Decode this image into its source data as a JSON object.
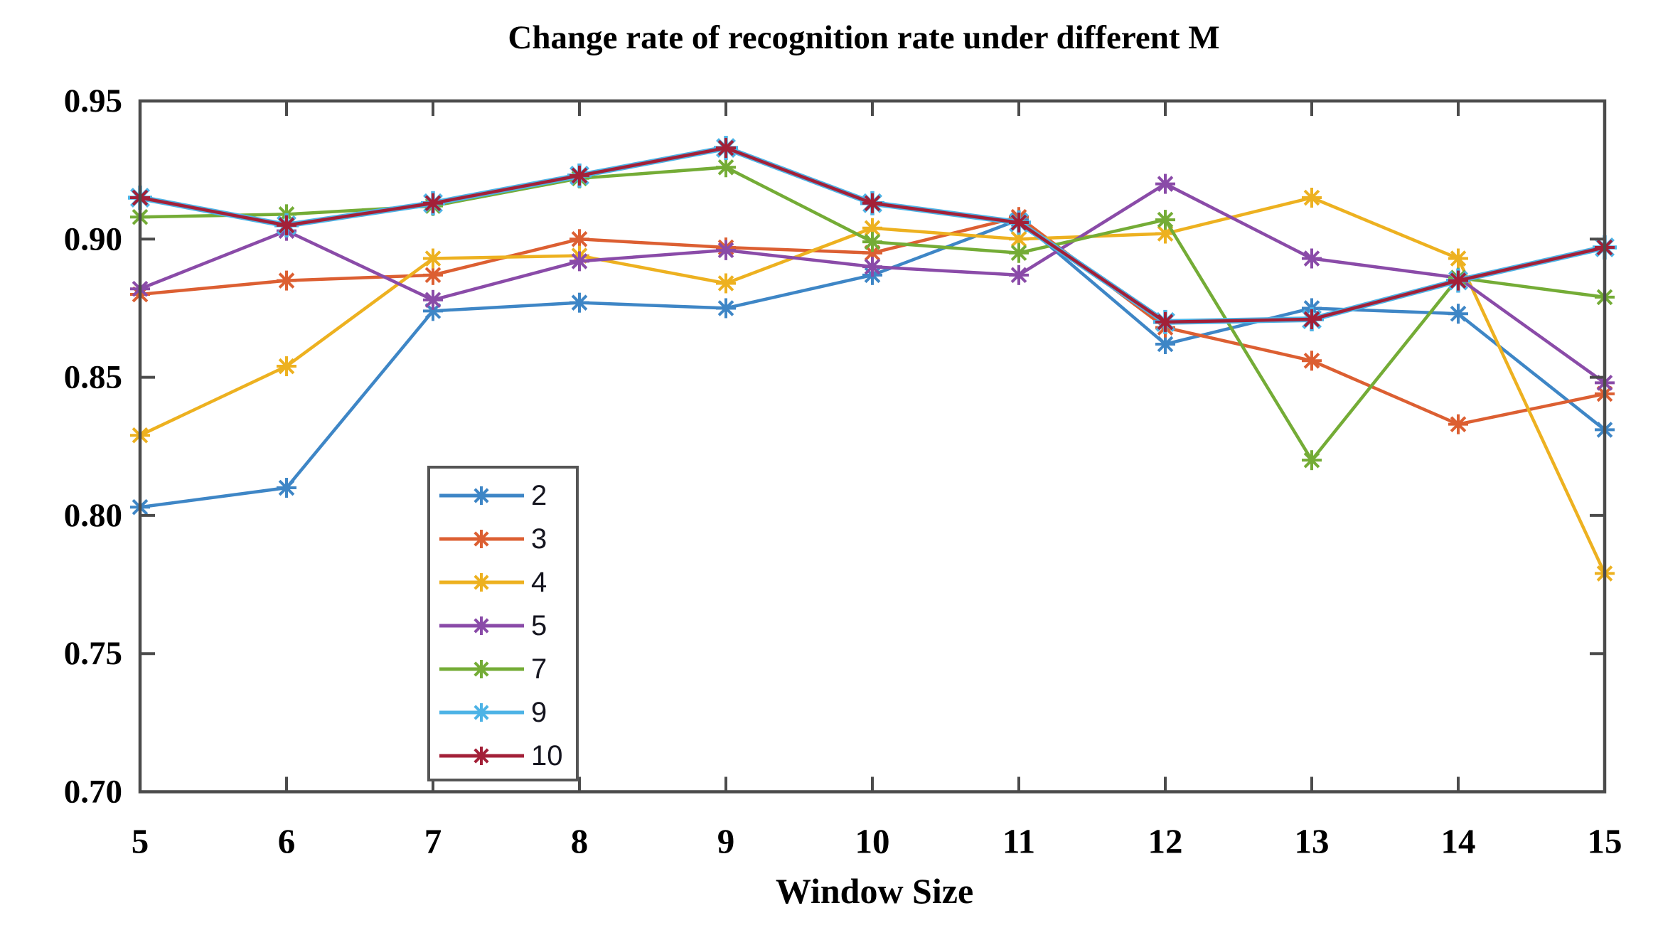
{
  "chart_data": {
    "type": "line",
    "title": "Change rate of recognition rate  under different M",
    "xlabel": "Window Size",
    "ylabel": "",
    "x": [
      5,
      6,
      7,
      8,
      9,
      10,
      11,
      12,
      13,
      14,
      15
    ],
    "xtick_labels": [
      "5",
      "6",
      "7",
      "8",
      "9",
      "10",
      "11",
      "12",
      "13",
      "14",
      "15"
    ],
    "yticks": [
      0.95,
      0.9,
      0.85,
      0.8,
      0.75,
      0.7
    ],
    "ytick_labels": [
      "0.95",
      "0.90",
      "0.85",
      "0.80",
      "0.75",
      "0.70"
    ],
    "xlim": [
      5,
      15
    ],
    "ylim": [
      0.7,
      0.95
    ],
    "grid": false,
    "marker": "asterisk",
    "legend_position": "inside-lower-left",
    "legend_order": [
      "2",
      "3",
      "4",
      "5",
      "7",
      "9",
      "10"
    ],
    "series": [
      {
        "name": "2",
        "color": "#3E86C6",
        "values": [
          0.803,
          0.81,
          0.874,
          0.877,
          0.875,
          0.887,
          0.907,
          0.862,
          0.875,
          0.873,
          0.831
        ]
      },
      {
        "name": "3",
        "color": "#DC5F32",
        "values": [
          0.88,
          0.885,
          0.887,
          0.9,
          0.897,
          0.895,
          0.908,
          0.868,
          0.856,
          0.833,
          0.844
        ]
      },
      {
        "name": "4",
        "color": "#EDB120",
        "values": [
          0.829,
          0.854,
          0.893,
          0.894,
          0.884,
          0.904,
          0.9,
          0.902,
          0.915,
          0.893,
          0.779
        ]
      },
      {
        "name": "5",
        "color": "#8A4BA8",
        "values": [
          0.882,
          0.903,
          0.878,
          0.892,
          0.896,
          0.89,
          0.887,
          0.92,
          0.893,
          0.886,
          0.848
        ]
      },
      {
        "name": "7",
        "color": "#74AC36",
        "values": [
          0.908,
          0.909,
          0.912,
          0.922,
          0.926,
          0.899,
          0.895,
          0.907,
          0.82,
          0.886,
          0.879
        ]
      },
      {
        "name": "9",
        "color": "#4DB3E6",
        "overlapped_by": "10",
        "values": [
          0.915,
          0.905,
          0.913,
          0.923,
          0.933,
          0.913,
          0.906,
          0.87,
          0.871,
          0.885,
          0.897
        ]
      },
      {
        "name": "10",
        "color": "#A32038",
        "values": [
          0.915,
          0.905,
          0.913,
          0.923,
          0.933,
          0.913,
          0.906,
          0.87,
          0.871,
          0.885,
          0.897
        ]
      }
    ]
  },
  "colors": {
    "background": "#FFFFFF",
    "axis": "#4B4B4B",
    "legend_border": "#555555",
    "text": "#000000"
  }
}
